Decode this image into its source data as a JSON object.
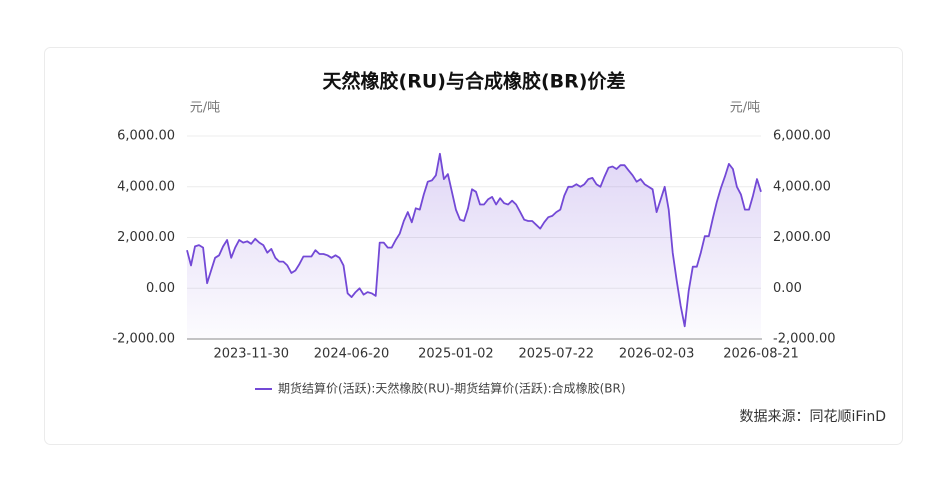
{
  "chart_data": {
    "type": "line",
    "title": "天然橡胶(RU)与合成橡胶(BR)价差",
    "y_label": "元/吨",
    "y2_label": "元/吨",
    "source": "数据来源：同花顺iFinD",
    "categories": [
      null,
      null,
      null,
      null,
      null,
      null,
      null,
      null,
      null,
      null,
      null,
      null,
      null,
      null,
      null,
      null,
      "2023-11-30",
      null,
      null,
      null,
      null,
      null,
      null,
      null,
      null,
      null,
      null,
      null,
      null,
      null,
      null,
      null,
      null,
      null,
      null,
      null,
      null,
      null,
      null,
      null,
      null,
      "2024-06-20",
      null,
      null,
      null,
      null,
      null,
      null,
      null,
      null,
      null,
      null,
      null,
      null,
      null,
      null,
      null,
      null,
      null,
      null,
      null,
      null,
      null,
      null,
      null,
      null,
      null,
      "2025-01-02",
      null,
      null,
      null,
      null,
      null,
      null,
      null,
      null,
      null,
      null,
      null,
      null,
      null,
      null,
      null,
      null,
      null,
      null,
      null,
      null,
      null,
      null,
      null,
      null,
      "2025-07-22",
      null,
      null,
      null,
      null,
      null,
      null,
      null,
      null,
      null,
      null,
      null,
      null,
      null,
      null,
      null,
      null,
      null,
      null,
      null,
      null,
      null,
      null,
      null,
      null,
      "2026-02-03",
      null,
      null,
      null,
      null,
      null,
      null,
      null,
      null,
      null,
      null,
      null,
      null,
      null,
      null,
      null,
      null,
      null,
      null,
      null,
      null,
      null,
      null,
      null,
      null,
      null,
      "2026-08-21"
    ],
    "series": [
      {
        "name": "期货结算价(活跃):天然橡胶(RU)-期货结算价(活跃):合成橡胶(BR)",
        "color": "#7349d6",
        "values": [
          1500,
          900,
          1650,
          1700,
          1600,
          200,
          700,
          1200,
          1300,
          1650,
          1900,
          1200,
          1600,
          1900,
          1800,
          1850,
          1750,
          1950,
          1800,
          1700,
          1400,
          1550,
          1200,
          1050,
          1050,
          900,
          600,
          700,
          950,
          1250,
          1250,
          1250,
          1500,
          1350,
          1350,
          1300,
          1200,
          1300,
          1200,
          900,
          -200,
          -350,
          -150,
          0,
          -250,
          -150,
          -200,
          -300,
          1800,
          1800,
          1600,
          1600,
          1900,
          2150,
          2650,
          3000,
          2600,
          3150,
          3100,
          3700,
          4200,
          4250,
          4450,
          5300,
          4300,
          4500,
          3800,
          3100,
          2700,
          2650,
          3150,
          3900,
          3800,
          3300,
          3300,
          3500,
          3600,
          3300,
          3550,
          3350,
          3300,
          3450,
          3300,
          3000,
          2700,
          2650,
          2650,
          2500,
          2350,
          2600,
          2800,
          2850,
          3000,
          3100,
          3650,
          4000,
          4000,
          4100,
          4000,
          4100,
          4300,
          4350,
          4100,
          4000,
          4400,
          4750,
          4800,
          4700,
          4850,
          4850,
          4650,
          4450,
          4200,
          4300,
          4100,
          4000,
          3900,
          3000,
          3500,
          4000,
          3100,
          1400,
          300,
          -700,
          -1500,
          -100,
          850,
          850,
          1400,
          2050,
          2050,
          2750,
          3400,
          3950,
          4400,
          4900,
          4700,
          4000,
          3700,
          3100,
          3100,
          3650,
          4300,
          3800
        ]
      }
    ],
    "ylim": [
      -2000,
      6000
    ],
    "yticks": [
      {
        "value": -2000,
        "label": "-2,000.00"
      },
      {
        "value": 0,
        "label": "0.00"
      },
      {
        "value": 2000,
        "label": "2,000.00"
      },
      {
        "value": 4000,
        "label": "4,000.00"
      },
      {
        "value": 6000,
        "label": "6,000.00"
      }
    ],
    "y2lim": [
      -2000,
      6000
    ],
    "y2ticks": [
      {
        "value": -2000,
        "label": "-2,000.00"
      },
      {
        "value": 0,
        "label": "0.00"
      },
      {
        "value": 2000,
        "label": "2,000.00"
      },
      {
        "value": 4000,
        "label": "4,000.00"
      },
      {
        "value": 6000,
        "label": "6,000.00"
      }
    ],
    "grid": true,
    "legend": "bottom"
  }
}
